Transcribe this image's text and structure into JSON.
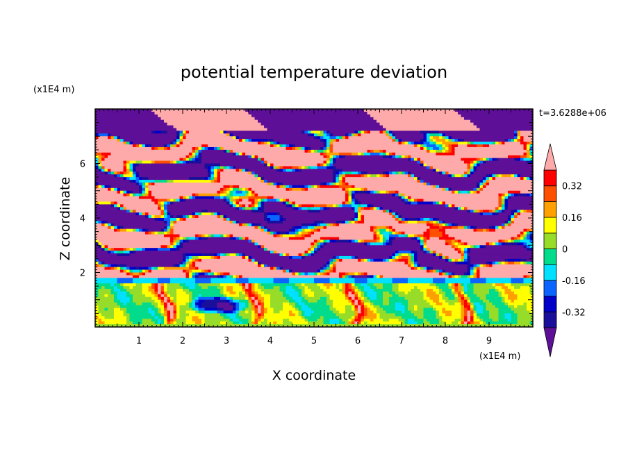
{
  "chart_data": {
    "type": "heatmap",
    "title": "potential temperature deviation",
    "xlabel": "X coordinate",
    "ylabel": "Z coordinate",
    "x_unit": "(x1E4 m)",
    "y_unit": "(x1E4 m)",
    "time_label": "t=3.6288e+06",
    "xlim": [
      0,
      10
    ],
    "ylim": [
      0,
      8
    ],
    "x_ticks": [
      1,
      2,
      3,
      4,
      5,
      6,
      7,
      8,
      9
    ],
    "y_ticks": [
      2,
      4,
      6
    ],
    "grid": false,
    "legend_placement": "right",
    "colorbar": {
      "levels": [
        -0.4,
        -0.32,
        -0.24,
        -0.16,
        -0.08,
        0,
        0.08,
        0.16,
        0.24,
        0.32,
        0.4
      ],
      "tick_labels": [
        "-0.32",
        "-0.16",
        "0",
        "0.16",
        "0.32"
      ],
      "tick_values": [
        -0.32,
        -0.16,
        0,
        0.16,
        0.32
      ],
      "colors": [
        "#5e0f97",
        "#1a0f9b",
        "#0000c8",
        "#0a64ff",
        "#00e1ff",
        "#00dc8c",
        "#96dc28",
        "#ffff00",
        "#ffa000",
        "#ff5000",
        "#ff0000",
        "#ffaaaa"
      ],
      "extend": "both"
    },
    "colors": {
      "warm": "#ffaaaa",
      "cool": "#7b0fa0",
      "near_zero_green": "#96dc28",
      "cyan": "#00e1ff"
    },
    "field_description": "layered positive/negative perturbations above z=1.8; turbulent boundary layer below with values near 0 and a cold eddy near x=2.8, z=0.8"
  }
}
